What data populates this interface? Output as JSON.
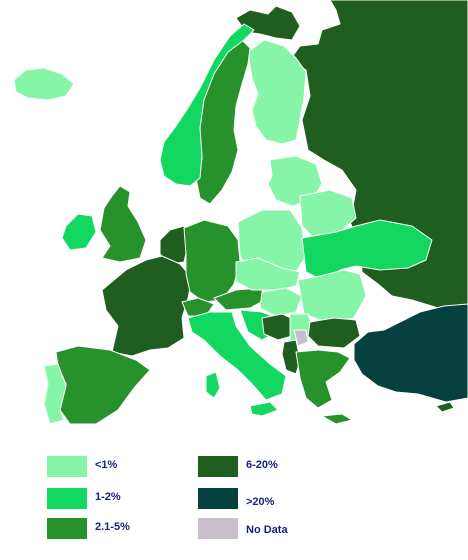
{
  "legend": {
    "items": [
      {
        "key": "lt1",
        "label": "<1%",
        "color": "#86f5a8"
      },
      {
        "key": "1to2",
        "label": "1-2%",
        "color": "#12d862"
      },
      {
        "key": "2to5",
        "label": "2.1-5%",
        "color": "#27922c"
      },
      {
        "key": "6to20",
        "label": "6-20%",
        "color": "#1f5e1e"
      },
      {
        "key": "gt20",
        "label": ">20%",
        "color": "#06403f"
      },
      {
        "key": "nodata",
        "label": "No Data",
        "color": "#c9bfca"
      }
    ]
  },
  "countries": {
    "russia": "6-20%",
    "finland": "<1%",
    "sweden": "2.1-5%",
    "norway": "1-2%",
    "iceland": "<1%",
    "ireland": "1-2%",
    "uk": "2.1-5%",
    "france": "6-20%",
    "spain": "2.1-5%",
    "portugal": "<1%",
    "germany": "2.1-5%",
    "benelux": "6-20%",
    "switzerland": "2.1-5%",
    "austria": "2.1-5%",
    "italy": "1-2%",
    "poland": "<1%",
    "baltics": "<1%",
    "belarus": "<1%",
    "ukraine": "1-2%",
    "czech": "<1%",
    "hungary": "<1%",
    "romania": "<1%",
    "bulgaria": "6-20%",
    "bih": "6-20%",
    "albania": "6-20%",
    "kosovo": "No Data",
    "greece": "2.1-5%",
    "turkey": ">20%",
    "cyprus": "6-20%"
  }
}
